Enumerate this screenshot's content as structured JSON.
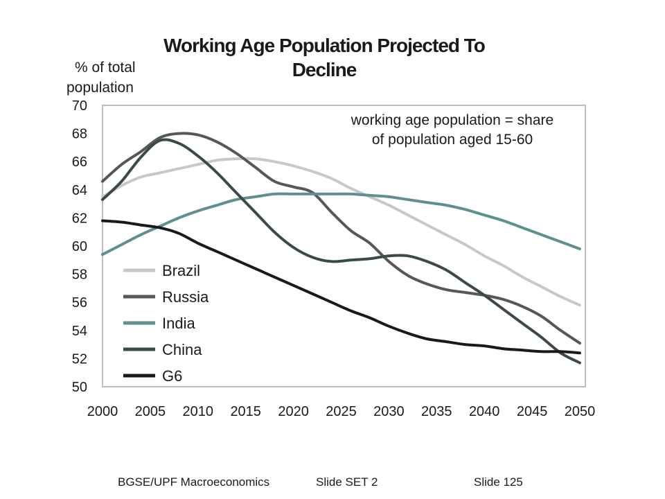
{
  "chart_data": {
    "type": "line",
    "title": "Working Age Population Projected To",
    "title_line2": "Decline",
    "ylabel": "% of total",
    "ylabel_line2": "population",
    "xlabel": "",
    "annotation": "working age population = share",
    "annotation_line2": "of population aged 15-60",
    "xlim": [
      2000,
      2050
    ],
    "ylim": [
      50,
      70
    ],
    "x_ticks": [
      2000,
      2005,
      2010,
      2015,
      2020,
      2025,
      2030,
      2035,
      2040,
      2045,
      2050
    ],
    "x_tick_labels": [
      "2000",
      "2005",
      "2010",
      "2015",
      "2020",
      "2025",
      "2030",
      "2035",
      "2040",
      "2045",
      "2050"
    ],
    "y_ticks": [
      50,
      52,
      54,
      56,
      58,
      60,
      62,
      64,
      66,
      68,
      70
    ],
    "y_tick_labels": [
      "50",
      "52",
      "54",
      "56",
      "58",
      "60",
      "62",
      "64",
      "66",
      "68",
      "70"
    ],
    "grid": false,
    "legend_position": "bottom-left",
    "series": [
      {
        "name": "Brazil",
        "color": "#c8c8c8",
        "x": [
          2000,
          2002,
          2004,
          2006,
          2008,
          2010,
          2012,
          2014,
          2016,
          2018,
          2020,
          2022,
          2024,
          2026,
          2028,
          2030,
          2032,
          2034,
          2036,
          2038,
          2040,
          2042,
          2044,
          2046,
          2048,
          2050
        ],
        "values": [
          63.5,
          64.3,
          64.9,
          65.2,
          65.5,
          65.8,
          66.1,
          66.2,
          66.2,
          66.0,
          65.7,
          65.3,
          64.8,
          64.1,
          63.5,
          62.9,
          62.2,
          61.5,
          60.8,
          60.1,
          59.3,
          58.6,
          57.8,
          57.1,
          56.4,
          55.8
        ]
      },
      {
        "name": "Russia",
        "color": "#575757",
        "x": [
          2000,
          2002,
          2004,
          2006,
          2008,
          2010,
          2012,
          2014,
          2016,
          2018,
          2020,
          2022,
          2024,
          2026,
          2028,
          2030,
          2032,
          2034,
          2036,
          2038,
          2040,
          2042,
          2044,
          2046,
          2048,
          2050
        ],
        "values": [
          64.6,
          65.8,
          66.7,
          67.7,
          68.0,
          67.9,
          67.4,
          66.6,
          65.6,
          64.6,
          64.2,
          63.8,
          62.4,
          61.1,
          60.2,
          58.9,
          57.9,
          57.3,
          56.9,
          56.7,
          56.5,
          56.2,
          55.7,
          55.0,
          54.0,
          53.1
        ]
      },
      {
        "name": "India",
        "color": "#5f9090",
        "x": [
          2000,
          2002,
          2004,
          2006,
          2008,
          2010,
          2012,
          2014,
          2016,
          2018,
          2020,
          2022,
          2024,
          2026,
          2028,
          2030,
          2032,
          2034,
          2036,
          2038,
          2040,
          2042,
          2044,
          2046,
          2048,
          2050
        ],
        "values": [
          59.4,
          60.1,
          60.8,
          61.4,
          62.0,
          62.5,
          62.9,
          63.3,
          63.5,
          63.7,
          63.7,
          63.7,
          63.7,
          63.7,
          63.6,
          63.5,
          63.3,
          63.1,
          62.9,
          62.6,
          62.2,
          61.8,
          61.3,
          60.8,
          60.3,
          59.8
        ]
      },
      {
        "name": "China",
        "color": "#3b4a48",
        "x": [
          2000,
          2002,
          2004,
          2006,
          2008,
          2010,
          2012,
          2014,
          2016,
          2018,
          2020,
          2022,
          2024,
          2026,
          2028,
          2030,
          2032,
          2034,
          2036,
          2038,
          2040,
          2042,
          2044,
          2046,
          2048,
          2050
        ],
        "values": [
          63.3,
          64.6,
          66.3,
          67.5,
          67.3,
          66.4,
          65.2,
          63.8,
          62.4,
          61.0,
          59.9,
          59.2,
          58.9,
          59.0,
          59.1,
          59.3,
          59.3,
          58.9,
          58.3,
          57.4,
          56.5,
          55.5,
          54.5,
          53.5,
          52.4,
          51.7
        ]
      },
      {
        "name": "G6",
        "color": "#1a1a1a",
        "x": [
          2000,
          2002,
          2004,
          2006,
          2008,
          2010,
          2012,
          2014,
          2016,
          2018,
          2020,
          2022,
          2024,
          2026,
          2028,
          2030,
          2032,
          2034,
          2036,
          2038,
          2040,
          2042,
          2044,
          2046,
          2048,
          2050
        ],
        "values": [
          61.8,
          61.7,
          61.5,
          61.3,
          60.9,
          60.2,
          59.6,
          59.0,
          58.4,
          57.8,
          57.2,
          56.6,
          56.0,
          55.4,
          54.9,
          54.3,
          53.8,
          53.4,
          53.2,
          53.0,
          52.9,
          52.7,
          52.6,
          52.5,
          52.5,
          52.4
        ]
      }
    ]
  },
  "footer": {
    "course": "BGSE/UPF Macroeconomics",
    "slide_set": "Slide SET 2",
    "slide_number": "Slide 125"
  }
}
